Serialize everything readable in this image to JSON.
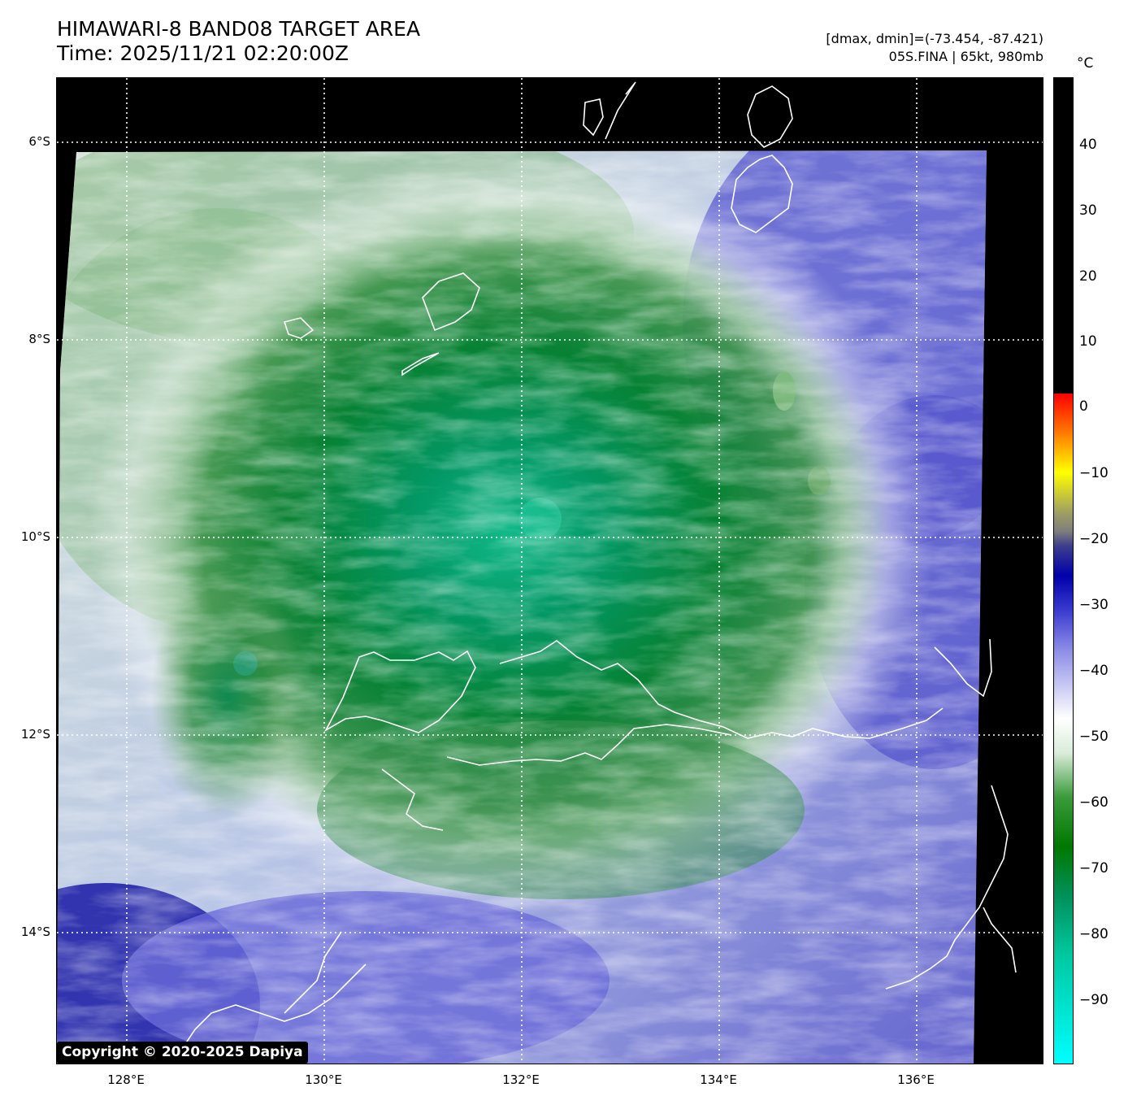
{
  "header": {
    "title_line1": "HIMAWARI-8 BAND08 TARGET AREA",
    "title_line2": "Time: 2025/11/21 02:20:00Z",
    "meta_line1": "[dmax, dmin]=(-73.454, -87.421)",
    "meta_line2": "05S.FINA | 65kt, 980mb"
  },
  "map": {
    "lat_labels": [
      "6°S",
      "8°S",
      "10°S",
      "12°S",
      "14°S"
    ],
    "lon_labels": [
      "128°E",
      "130°E",
      "132°E",
      "134°E",
      "136°E"
    ],
    "gridline_color": "#ffffff",
    "coastline_color": "#ffffff",
    "no_data_color": "#000000"
  },
  "colorbar": {
    "unit": "°C",
    "tick_labels": [
      "40",
      "30",
      "20",
      "10",
      "0",
      "−10",
      "−20",
      "−30",
      "−40",
      "−50",
      "−60",
      "−70",
      "−80",
      "−90"
    ]
  },
  "copyright": "Copyright © 2020-2025 Dapiya"
}
